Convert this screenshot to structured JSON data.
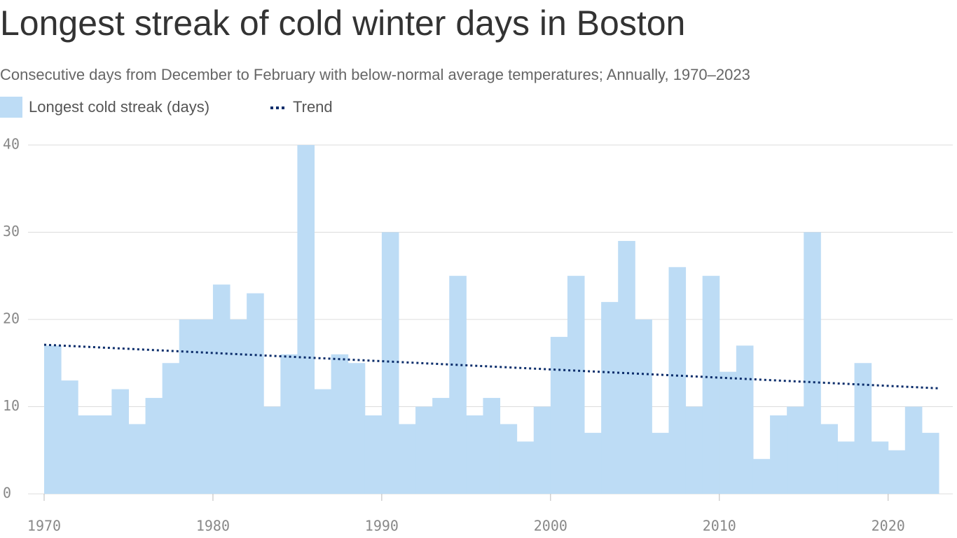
{
  "chart_data": {
    "type": "histogram",
    "title": "Longest streak of cold winter days in Boston",
    "subtitle": "Consecutive days from December to February with below-normal average temperatures; Annually, 1970–2023",
    "bins": [
      1970,
      1971,
      1972,
      1973,
      1974,
      1975,
      1976,
      1977,
      1978,
      1979,
      1980,
      1981,
      1982,
      1983,
      1984,
      1985,
      1986,
      1987,
      1988,
      1989,
      1990,
      1991,
      1992,
      1993,
      1994,
      1995,
      1996,
      1997,
      1998,
      1999,
      2000,
      2001,
      2002,
      2003,
      2004,
      2005,
      2006,
      2007,
      2008,
      2009,
      2010,
      2011,
      2012,
      2013,
      2014,
      2015,
      2016,
      2017,
      2018,
      2019,
      2020,
      2021,
      2022,
      2023
    ],
    "series": [
      {
        "name": "Longest cold streak (days)",
        "color": "#bddcf5",
        "values": [
          17,
          13,
          9,
          9,
          12,
          8,
          11,
          15,
          20,
          20,
          24,
          20,
          23,
          10,
          16,
          40,
          12,
          16,
          15,
          9,
          30,
          8,
          10,
          11,
          25,
          9,
          11,
          8,
          6,
          10,
          18,
          25,
          7,
          22,
          29,
          20,
          7,
          26,
          10,
          25,
          14,
          17,
          4,
          9,
          10,
          30,
          8,
          6,
          15,
          6,
          5,
          10,
          7
        ]
      }
    ],
    "trend": {
      "name": "Trend",
      "color": "#0b2d6b",
      "x": [
        1970,
        2023
      ],
      "values": [
        17.1,
        12.1
      ]
    },
    "xlim": [
      1970,
      2023
    ],
    "xticks": [
      1970,
      1980,
      1990,
      2000,
      2010,
      2020
    ],
    "ylim": [
      0,
      40
    ],
    "yticks": [
      0,
      10,
      20,
      30,
      40
    ],
    "grid": true
  }
}
